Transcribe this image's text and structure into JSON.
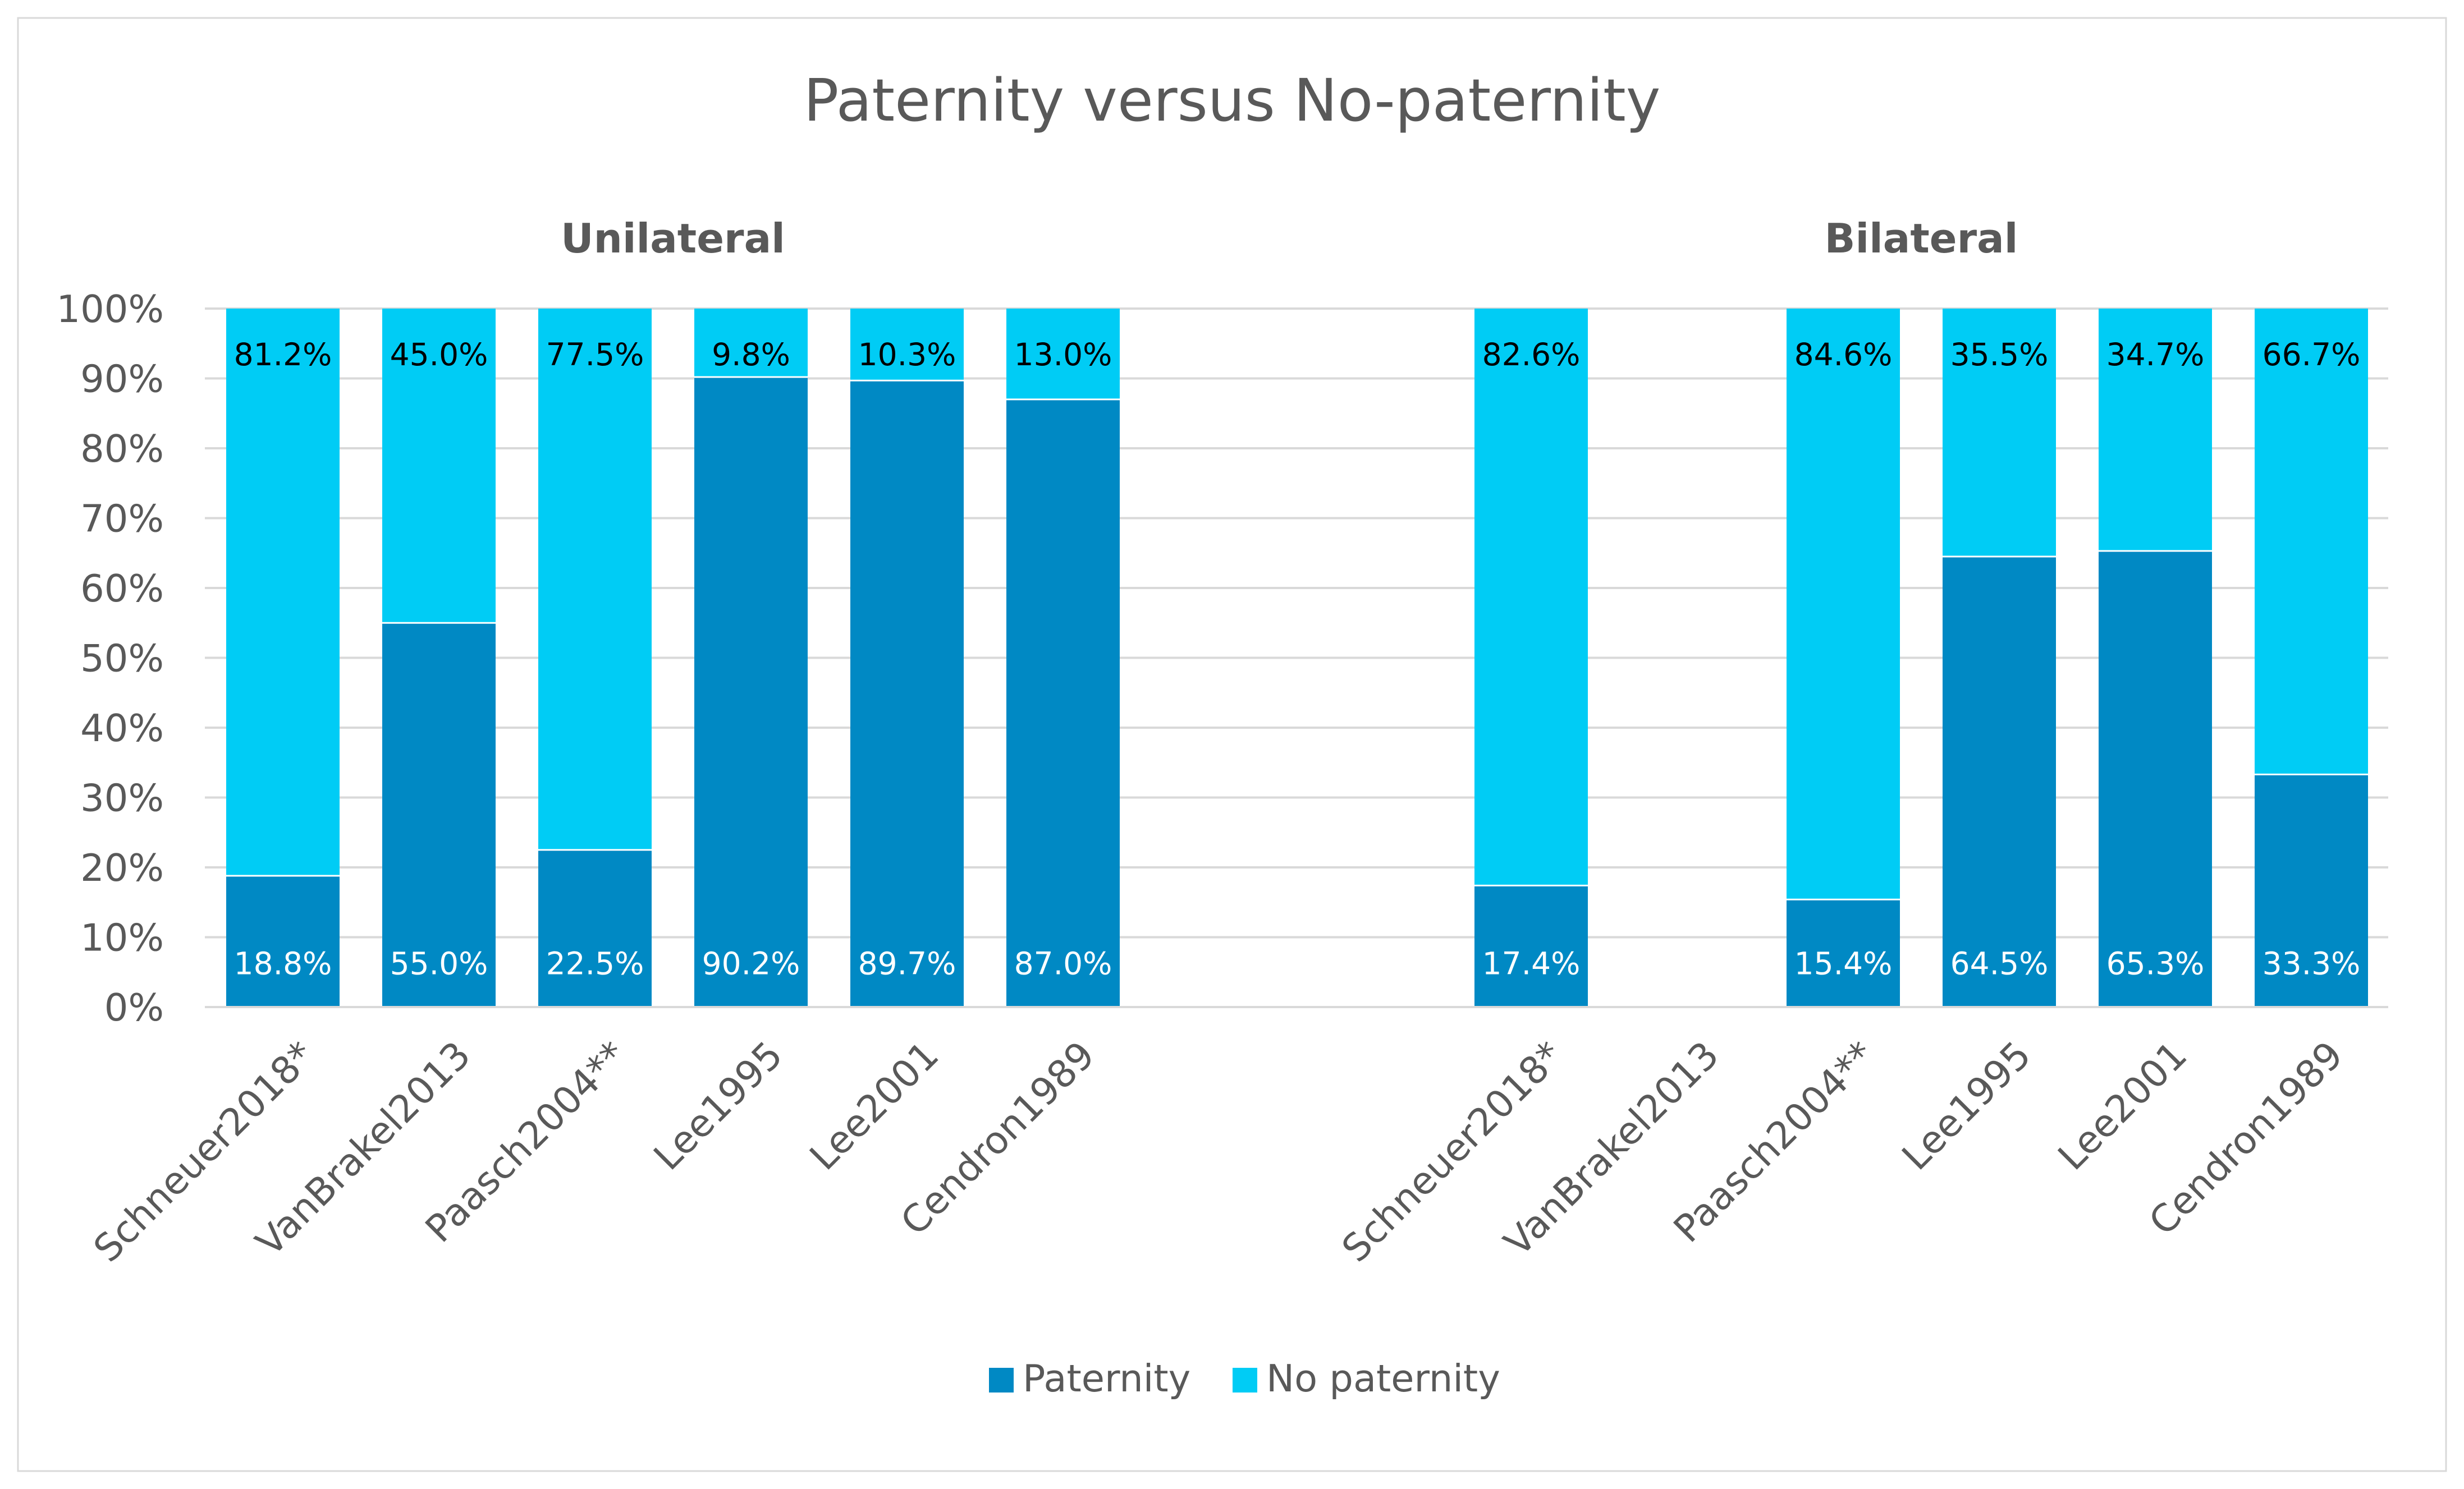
{
  "chart_data": {
    "type": "bar",
    "stacked": true,
    "percent_stacked": true,
    "title": "Paternity versus No-paternity",
    "groups": [
      "Unilateral",
      "Bilateral"
    ],
    "categories": [
      "Schneuer2018*",
      "VanBrakel2013",
      "Paasch2004**",
      "Lee1995",
      "Lee2001",
      "Cendron1989"
    ],
    "series": [
      {
        "name": "Paternity",
        "color": "#0089C4",
        "unilateral": [
          18.8,
          55.0,
          22.5,
          90.2,
          89.7,
          87.0
        ],
        "bilateral": [
          17.4,
          null,
          15.4,
          64.5,
          65.3,
          33.3
        ],
        "unilateral_labels": [
          "18.8%",
          "55.0%",
          "22.5%",
          "90.2%",
          "89.7%",
          "87.0%"
        ],
        "bilateral_labels": [
          "17.4%",
          "",
          "15.4%",
          "64.5%",
          "65.3%",
          "33.3%"
        ]
      },
      {
        "name": "No paternity",
        "color": "#00CCF5",
        "unilateral": [
          81.2,
          45.0,
          77.5,
          9.8,
          10.3,
          13.0
        ],
        "bilateral": [
          82.6,
          null,
          84.6,
          35.5,
          34.7,
          66.7
        ],
        "unilateral_labels": [
          "81.2%",
          "45.0%",
          "77.5%",
          "9.8%",
          "10.3%",
          "13.0%"
        ],
        "bilateral_labels": [
          "82.6%",
          "",
          "84.6%",
          "35.5%",
          "34.7%",
          "66.7%"
        ]
      }
    ],
    "yticks": [
      "0%",
      "10%",
      "20%",
      "30%",
      "40%",
      "50%",
      "60%",
      "70%",
      "80%",
      "90%",
      "100%"
    ],
    "ylim": [
      0,
      100
    ],
    "xlabel": "",
    "ylabel": "",
    "grid": true,
    "legend": "bottom-center"
  }
}
